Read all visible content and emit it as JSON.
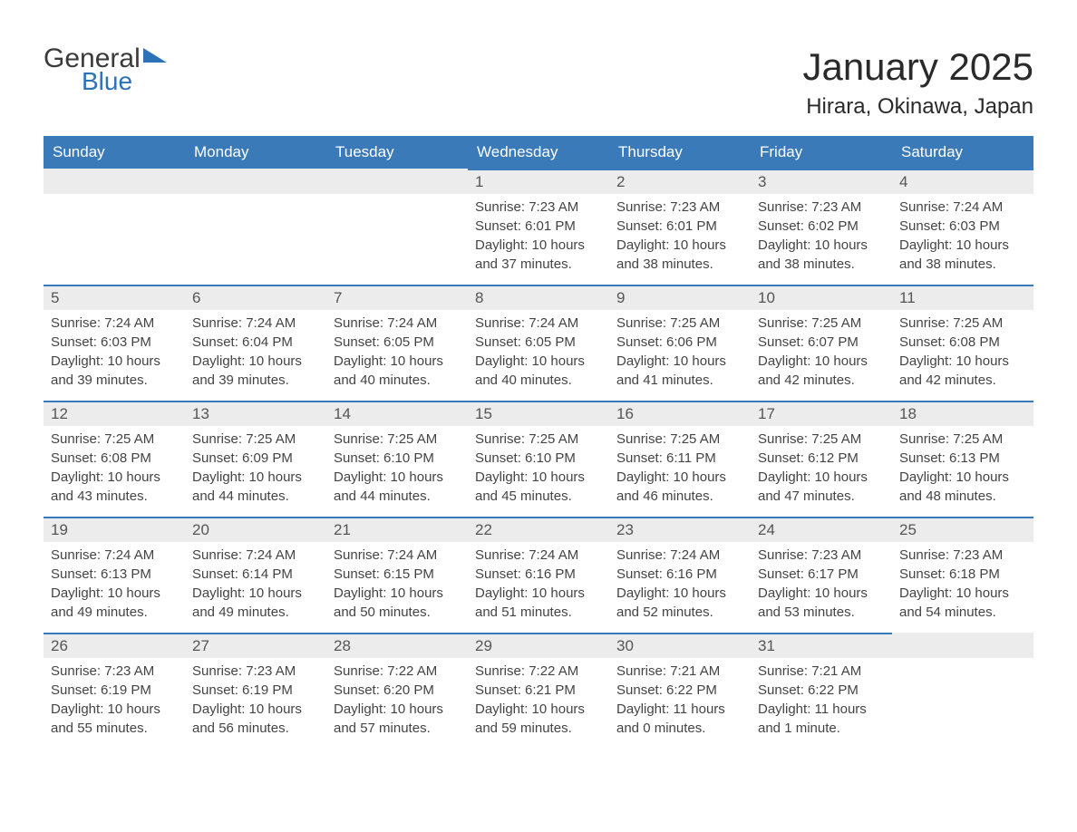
{
  "logo": {
    "word1": "General",
    "word2": "Blue"
  },
  "header": {
    "month_title": "January 2025",
    "location": "Hirara, Okinawa, Japan"
  },
  "style": {
    "header_bg": "#3a7ab8",
    "header_text": "#ffffff",
    "daynum_bg": "#ececec",
    "daynum_border": "#3a7ab8",
    "body_text": "#444444",
    "page_bg": "#ffffff",
    "logo_blue": "#2b72b8",
    "title_fontsize": 42,
    "location_fontsize": 24,
    "dow_fontsize": 17,
    "info_fontsize": 15
  },
  "days_of_week": [
    "Sunday",
    "Monday",
    "Tuesday",
    "Wednesday",
    "Thursday",
    "Friday",
    "Saturday"
  ],
  "weeks": [
    [
      {
        "blank": true
      },
      {
        "blank": true
      },
      {
        "blank": true
      },
      {
        "day": "1",
        "sunrise": "Sunrise: 7:23 AM",
        "sunset": "Sunset: 6:01 PM",
        "dl1": "Daylight: 10 hours",
        "dl2": "and 37 minutes."
      },
      {
        "day": "2",
        "sunrise": "Sunrise: 7:23 AM",
        "sunset": "Sunset: 6:01 PM",
        "dl1": "Daylight: 10 hours",
        "dl2": "and 38 minutes."
      },
      {
        "day": "3",
        "sunrise": "Sunrise: 7:23 AM",
        "sunset": "Sunset: 6:02 PM",
        "dl1": "Daylight: 10 hours",
        "dl2": "and 38 minutes."
      },
      {
        "day": "4",
        "sunrise": "Sunrise: 7:24 AM",
        "sunset": "Sunset: 6:03 PM",
        "dl1": "Daylight: 10 hours",
        "dl2": "and 38 minutes."
      }
    ],
    [
      {
        "day": "5",
        "sunrise": "Sunrise: 7:24 AM",
        "sunset": "Sunset: 6:03 PM",
        "dl1": "Daylight: 10 hours",
        "dl2": "and 39 minutes."
      },
      {
        "day": "6",
        "sunrise": "Sunrise: 7:24 AM",
        "sunset": "Sunset: 6:04 PM",
        "dl1": "Daylight: 10 hours",
        "dl2": "and 39 minutes."
      },
      {
        "day": "7",
        "sunrise": "Sunrise: 7:24 AM",
        "sunset": "Sunset: 6:05 PM",
        "dl1": "Daylight: 10 hours",
        "dl2": "and 40 minutes."
      },
      {
        "day": "8",
        "sunrise": "Sunrise: 7:24 AM",
        "sunset": "Sunset: 6:05 PM",
        "dl1": "Daylight: 10 hours",
        "dl2": "and 40 minutes."
      },
      {
        "day": "9",
        "sunrise": "Sunrise: 7:25 AM",
        "sunset": "Sunset: 6:06 PM",
        "dl1": "Daylight: 10 hours",
        "dl2": "and 41 minutes."
      },
      {
        "day": "10",
        "sunrise": "Sunrise: 7:25 AM",
        "sunset": "Sunset: 6:07 PM",
        "dl1": "Daylight: 10 hours",
        "dl2": "and 42 minutes."
      },
      {
        "day": "11",
        "sunrise": "Sunrise: 7:25 AM",
        "sunset": "Sunset: 6:08 PM",
        "dl1": "Daylight: 10 hours",
        "dl2": "and 42 minutes."
      }
    ],
    [
      {
        "day": "12",
        "sunrise": "Sunrise: 7:25 AM",
        "sunset": "Sunset: 6:08 PM",
        "dl1": "Daylight: 10 hours",
        "dl2": "and 43 minutes."
      },
      {
        "day": "13",
        "sunrise": "Sunrise: 7:25 AM",
        "sunset": "Sunset: 6:09 PM",
        "dl1": "Daylight: 10 hours",
        "dl2": "and 44 minutes."
      },
      {
        "day": "14",
        "sunrise": "Sunrise: 7:25 AM",
        "sunset": "Sunset: 6:10 PM",
        "dl1": "Daylight: 10 hours",
        "dl2": "and 44 minutes."
      },
      {
        "day": "15",
        "sunrise": "Sunrise: 7:25 AM",
        "sunset": "Sunset: 6:10 PM",
        "dl1": "Daylight: 10 hours",
        "dl2": "and 45 minutes."
      },
      {
        "day": "16",
        "sunrise": "Sunrise: 7:25 AM",
        "sunset": "Sunset: 6:11 PM",
        "dl1": "Daylight: 10 hours",
        "dl2": "and 46 minutes."
      },
      {
        "day": "17",
        "sunrise": "Sunrise: 7:25 AM",
        "sunset": "Sunset: 6:12 PM",
        "dl1": "Daylight: 10 hours",
        "dl2": "and 47 minutes."
      },
      {
        "day": "18",
        "sunrise": "Sunrise: 7:25 AM",
        "sunset": "Sunset: 6:13 PM",
        "dl1": "Daylight: 10 hours",
        "dl2": "and 48 minutes."
      }
    ],
    [
      {
        "day": "19",
        "sunrise": "Sunrise: 7:24 AM",
        "sunset": "Sunset: 6:13 PM",
        "dl1": "Daylight: 10 hours",
        "dl2": "and 49 minutes."
      },
      {
        "day": "20",
        "sunrise": "Sunrise: 7:24 AM",
        "sunset": "Sunset: 6:14 PM",
        "dl1": "Daylight: 10 hours",
        "dl2": "and 49 minutes."
      },
      {
        "day": "21",
        "sunrise": "Sunrise: 7:24 AM",
        "sunset": "Sunset: 6:15 PM",
        "dl1": "Daylight: 10 hours",
        "dl2": "and 50 minutes."
      },
      {
        "day": "22",
        "sunrise": "Sunrise: 7:24 AM",
        "sunset": "Sunset: 6:16 PM",
        "dl1": "Daylight: 10 hours",
        "dl2": "and 51 minutes."
      },
      {
        "day": "23",
        "sunrise": "Sunrise: 7:24 AM",
        "sunset": "Sunset: 6:16 PM",
        "dl1": "Daylight: 10 hours",
        "dl2": "and 52 minutes."
      },
      {
        "day": "24",
        "sunrise": "Sunrise: 7:23 AM",
        "sunset": "Sunset: 6:17 PM",
        "dl1": "Daylight: 10 hours",
        "dl2": "and 53 minutes."
      },
      {
        "day": "25",
        "sunrise": "Sunrise: 7:23 AM",
        "sunset": "Sunset: 6:18 PM",
        "dl1": "Daylight: 10 hours",
        "dl2": "and 54 minutes."
      }
    ],
    [
      {
        "day": "26",
        "sunrise": "Sunrise: 7:23 AM",
        "sunset": "Sunset: 6:19 PM",
        "dl1": "Daylight: 10 hours",
        "dl2": "and 55 minutes."
      },
      {
        "day": "27",
        "sunrise": "Sunrise: 7:23 AM",
        "sunset": "Sunset: 6:19 PM",
        "dl1": "Daylight: 10 hours",
        "dl2": "and 56 minutes."
      },
      {
        "day": "28",
        "sunrise": "Sunrise: 7:22 AM",
        "sunset": "Sunset: 6:20 PM",
        "dl1": "Daylight: 10 hours",
        "dl2": "and 57 minutes."
      },
      {
        "day": "29",
        "sunrise": "Sunrise: 7:22 AM",
        "sunset": "Sunset: 6:21 PM",
        "dl1": "Daylight: 10 hours",
        "dl2": "and 59 minutes."
      },
      {
        "day": "30",
        "sunrise": "Sunrise: 7:21 AM",
        "sunset": "Sunset: 6:22 PM",
        "dl1": "Daylight: 11 hours",
        "dl2": "and 0 minutes."
      },
      {
        "day": "31",
        "sunrise": "Sunrise: 7:21 AM",
        "sunset": "Sunset: 6:22 PM",
        "dl1": "Daylight: 11 hours",
        "dl2": "and 1 minute."
      },
      {
        "blank": true
      }
    ]
  ]
}
